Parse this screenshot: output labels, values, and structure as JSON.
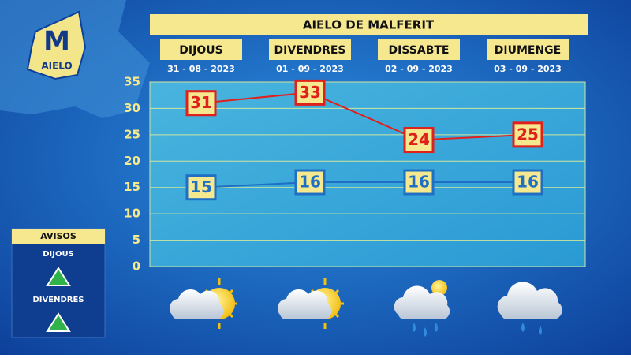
{
  "chart_data": {
    "type": "line",
    "title": "AIELO DE MALFERIT",
    "categories": [
      "DIJOUS",
      "DIVENDRES",
      "DISSABTE",
      "DIUMENGE"
    ],
    "dates": [
      "31 - 08 - 2023",
      "01 - 09 - 2023",
      "02 - 09 - 2023",
      "03 - 09 - 2023"
    ],
    "series": [
      {
        "color": "#e0201b",
        "values": [
          31,
          33,
          24,
          25
        ]
      },
      {
        "color": "#1f6fc4",
        "values": [
          15,
          16,
          16,
          16
        ]
      }
    ],
    "ylim": [
      0,
      35
    ],
    "yticks": [
      0,
      5,
      10,
      15,
      20,
      25,
      30,
      35
    ],
    "grid": true
  },
  "logo": {
    "letter": "M",
    "name": "AIELO"
  },
  "warnings": {
    "title": "AVISOS",
    "days": [
      "DIJOUS",
      "DIVENDRES"
    ]
  }
}
